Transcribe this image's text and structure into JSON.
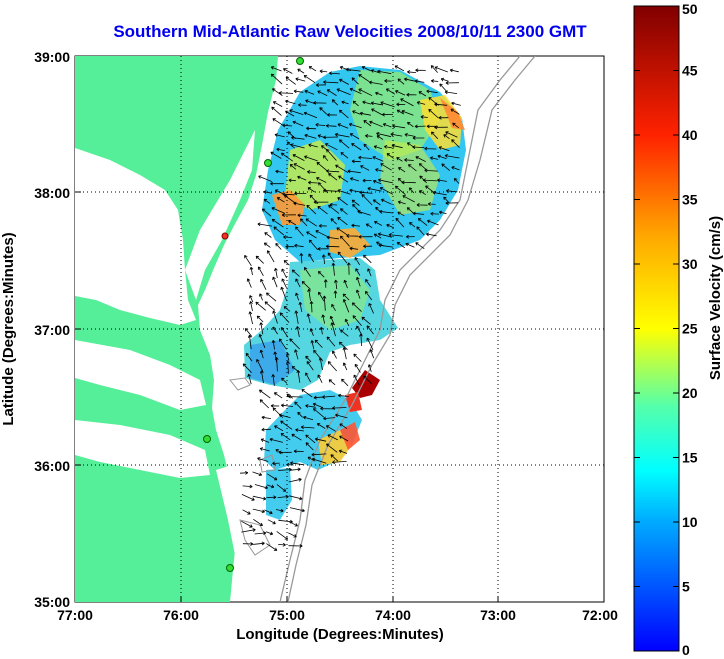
{
  "title": "Southern Mid-Atlantic Raw Velocities 2008/10/11 2300 GMT",
  "map": {
    "x_axis_label": "Longitude (Degrees:Minutes)",
    "y_axis_label": "Latitude (Degrees:Minutes)",
    "x_ticks": [
      "77:00",
      "76:00",
      "75:00",
      "74:00",
      "73:00",
      "72:00"
    ],
    "y_ticks": [
      "39:00",
      "38:00",
      "37:00",
      "36:00",
      "35:00"
    ],
    "x_range_deg": [
      -77,
      -72
    ],
    "y_range_deg": [
      35,
      39
    ],
    "grid": "dotted",
    "land_color": "#55ee99",
    "vector_color": "#000000",
    "station_color": "#33dd33",
    "station_active_color": "#ee3322"
  },
  "colorbar": {
    "label": "Surface Velocity (cm/s)",
    "ticks": [
      "50",
      "45",
      "40",
      "35",
      "30",
      "25",
      "20",
      "15",
      "10",
      "5",
      "0"
    ],
    "range": [
      0,
      50
    ],
    "colors": [
      "#0000ff",
      "#00aaff",
      "#00ffff",
      "#77ff77",
      "#ffff00",
      "#ff9900",
      "#ff0000",
      "#800000"
    ]
  }
}
